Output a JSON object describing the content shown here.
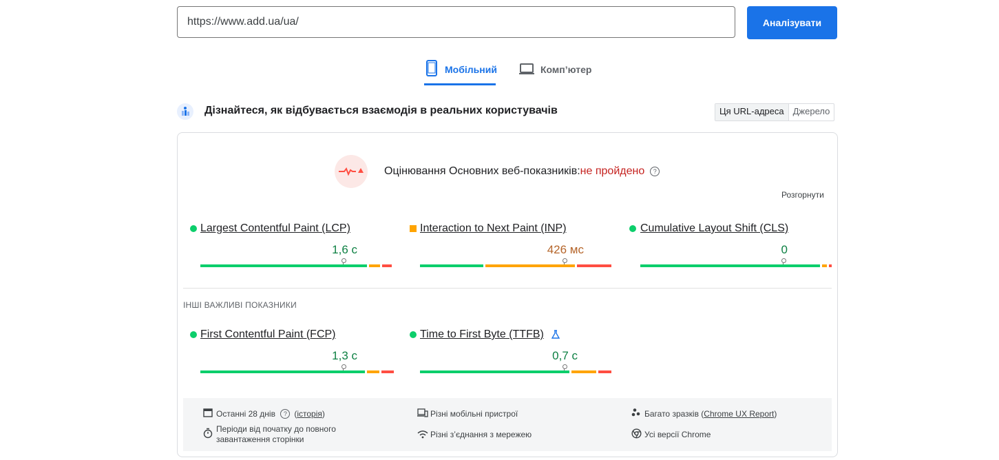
{
  "search": {
    "url_value": "https://www.add.ua/ua/",
    "analyze_label": "Аналізувати"
  },
  "tabs": {
    "mobile_label": "Мобільний",
    "desktop_label": "Комп’ютер",
    "active": "mobile"
  },
  "crux": {
    "heading": "Дізнайтеся, як відбувається взаємодія в реальних користувачів",
    "toggle_url": "Ця URL-адреса",
    "toggle_origin": "Джерело"
  },
  "assessment": {
    "title": "Оцінювання Основних веб-показників:",
    "result": "не пройдено",
    "expand_label": "Розгорнути"
  },
  "core_metrics": [
    {
      "name": "Largest Contentful Paint (LCP)",
      "value": "1,6 с",
      "status": "good",
      "distribution": {
        "good": 0.88,
        "needs_improvement": 0.07,
        "poor": 0.05
      }
    },
    {
      "name": "Interaction to Next Paint (INP)",
      "value": "426 мс",
      "status": "needs-improvement",
      "distribution": {
        "good": 0.34,
        "needs_improvement": 0.48,
        "poor": 0.18
      }
    },
    {
      "name": "Cumulative Layout Shift (CLS)",
      "value": "0",
      "status": "good",
      "distribution": {
        "good": 0.95,
        "needs_improvement": 0.035,
        "poor": 0.015
      }
    }
  ],
  "other_section_title": "ІНШІ ВАЖЛИВІ ПОКАЗНИКИ",
  "other_metrics": [
    {
      "name": "First Contentful Paint (FCP)",
      "value": "1,3 с",
      "status": "good",
      "distribution": {
        "good": 0.87,
        "needs_improvement": 0.075,
        "poor": 0.065
      }
    },
    {
      "name": "Time to First Byte (TTFB)",
      "value": "0,7 с",
      "status": "good",
      "experimental": true,
      "distribution": {
        "good": 0.79,
        "needs_improvement": 0.14,
        "poor": 0.07
      }
    }
  ],
  "footer": {
    "period_label": "Останні 28 днів",
    "history_link": "історія",
    "sessions_label": "Періоди від початку до повного завантаження сторінки",
    "devices_label": "Різні мобільні пристрої",
    "network_label": "Різні з’єднання з мережею",
    "samples_label": "Багато зразків",
    "samples_link": "Chrome UX Report",
    "chrome_label": "Усі версії Chrome"
  },
  "colors": {
    "accent": "#1a73e8",
    "good": "#0cce6b",
    "needs_improvement": "#ffa400",
    "poor": "#ff4e42",
    "fail_text": "#c5221f"
  }
}
